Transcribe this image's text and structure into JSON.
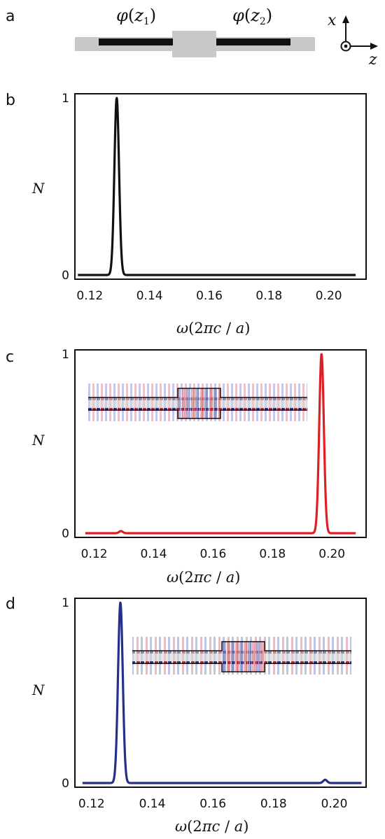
{
  "panel_a": {
    "label": "a",
    "phi1_func": "φ",
    "phi1_open": "(",
    "phi1_var": "z",
    "phi1_sub": "1",
    "phi1_close": ")",
    "phi2_func": "φ",
    "phi2_open": "(",
    "phi2_var": "z",
    "phi2_sub": "2",
    "phi2_close": ")",
    "axis_x": "x",
    "axis_z": "z",
    "colors": {
      "cladding": "#c8c8c8",
      "core": "#111111"
    }
  },
  "xlabel": {
    "omega": "ω",
    "open": "(2",
    "pi": "π",
    "c": "c",
    "slash": " / ",
    "a": "a",
    "close": ")"
  },
  "chart_data": [
    {
      "panel": "b",
      "type": "line",
      "ylabel": "N",
      "xticks": [
        "0.12",
        "0.14",
        "0.16",
        "0.18",
        "0.20"
      ],
      "yticks": [
        "0",
        "1"
      ],
      "xlim": [
        0.115,
        0.2125
      ],
      "ylim": [
        0,
        1
      ],
      "grid": false,
      "color": "#111111",
      "x_range": [
        0.116,
        0.209
      ],
      "peaks": [
        {
          "x": 0.129,
          "y": 1.0,
          "width": 0.0011
        }
      ]
    },
    {
      "panel": "c",
      "type": "line",
      "ylabel": "N",
      "xticks": [
        "0.12",
        "0.14",
        "0.16",
        "0.18",
        "0.20"
      ],
      "yticks": [
        "0",
        "1"
      ],
      "xlim": [
        0.1135,
        0.2115
      ],
      "ylim": [
        0,
        1
      ],
      "grid": false,
      "color": "#dd1f26",
      "x_range": [
        0.117,
        0.208
      ],
      "inset": "field map of waveguide junction",
      "peaks": [
        {
          "x": 0.1965,
          "y": 1.0,
          "width": 0.0011
        },
        {
          "x": 0.129,
          "y": 0.012,
          "width": 0.0009
        }
      ]
    },
    {
      "panel": "d",
      "type": "line",
      "ylabel": "N",
      "xticks": [
        "0.12",
        "0.14",
        "0.16",
        "0.18",
        "0.20"
      ],
      "yticks": [
        "0",
        "1"
      ],
      "xlim": [
        0.1145,
        0.2105
      ],
      "ylim": [
        0,
        1
      ],
      "grid": false,
      "color": "#25308c",
      "x_range": [
        0.117,
        0.209
      ],
      "inset": "field map of waveguide junction",
      "peaks": [
        {
          "x": 0.1295,
          "y": 1.0,
          "width": 0.0011
        },
        {
          "x": 0.197,
          "y": 0.018,
          "width": 0.0009
        }
      ]
    }
  ]
}
